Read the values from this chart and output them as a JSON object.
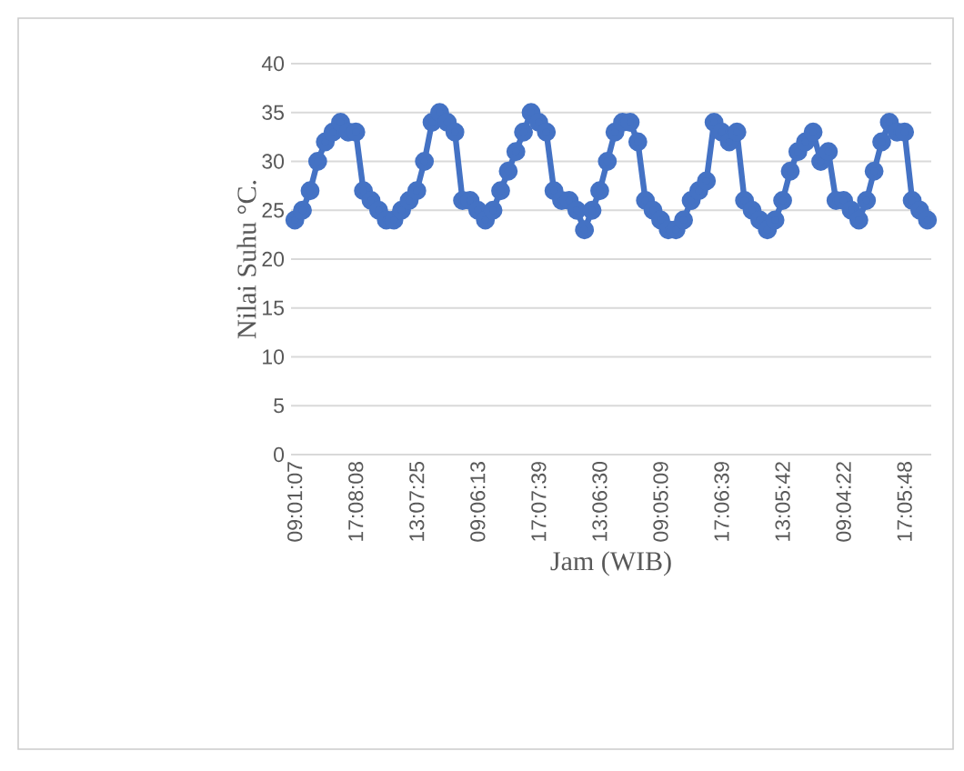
{
  "chart_data": {
    "type": "line",
    "xlabel": "Jam (WIB)",
    "ylabel": "Nilai Suhu °C.",
    "categories": [
      "09:01:07",
      null,
      null,
      null,
      null,
      null,
      null,
      null,
      "17:08:08",
      null,
      null,
      null,
      null,
      null,
      null,
      null,
      "13:07:25",
      null,
      null,
      null,
      null,
      null,
      null,
      null,
      "09:06:13",
      null,
      null,
      null,
      null,
      null,
      null,
      null,
      "17:07:39",
      null,
      null,
      null,
      null,
      null,
      null,
      null,
      "13:06:30",
      null,
      null,
      null,
      null,
      null,
      null,
      null,
      "09:05:09",
      null,
      null,
      null,
      null,
      null,
      null,
      null,
      "17:06:39",
      null,
      null,
      null,
      null,
      null,
      null,
      null,
      "13:05:42",
      null,
      null,
      null,
      null,
      null,
      null,
      null,
      "09:04:22",
      null,
      null,
      null,
      null,
      null,
      null,
      null,
      "17:05:48",
      null,
      null,
      null
    ],
    "series": [
      {
        "color": "#4472c4",
        "values": [
          24,
          25,
          27,
          30,
          32,
          33,
          34,
          33,
          33,
          27,
          26,
          25,
          24,
          24,
          25,
          26,
          27,
          30,
          34,
          35,
          34,
          33,
          26,
          26,
          25,
          24,
          25,
          27,
          29,
          31,
          33,
          35,
          34,
          33,
          27,
          26,
          26,
          25,
          23,
          25,
          27,
          30,
          33,
          34,
          34,
          32,
          26,
          25,
          24,
          23,
          23,
          24,
          26,
          27,
          28,
          34,
          33,
          32,
          33,
          26,
          25,
          24,
          23,
          24,
          26,
          29,
          31,
          32,
          33,
          30,
          31,
          26,
          26,
          25,
          24,
          26,
          29,
          32,
          34,
          33,
          33,
          26,
          25,
          24
        ]
      }
    ],
    "ylim": [
      0,
      40
    ],
    "yticks": [
      0,
      5,
      10,
      15,
      20,
      25,
      30,
      35,
      40
    ],
    "grid": "y",
    "marker": "circle",
    "line_style": "solid"
  }
}
